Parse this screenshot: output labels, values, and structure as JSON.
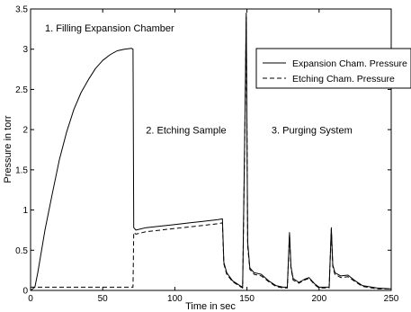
{
  "chart_data": {
    "type": "line",
    "xlabel": "Time in sec",
    "ylabel": "Pressure in torr",
    "xlim": [
      0,
      250
    ],
    "ylim": [
      0,
      3.5
    ],
    "xticks": [
      0,
      50,
      100,
      150,
      200,
      250
    ],
    "xtick_labels": [
      "0",
      "50",
      "100",
      "150",
      "200",
      "250"
    ],
    "yticks": [
      0,
      0.5,
      1,
      1.5,
      2,
      2.5,
      3,
      3.5
    ],
    "ytick_labels": [
      "0",
      "0.5",
      "1",
      "1.5",
      "2",
      "2.5",
      "3",
      "3.5"
    ],
    "grid": false,
    "legend_position": "right",
    "annotations": [
      {
        "text": "1. Filling Expansion Chamber",
        "x": 10,
        "y": 3.22
      },
      {
        "text": "2. Etching Sample",
        "x": 80,
        "y": 1.95
      },
      {
        "text": "3. Purging System",
        "x": 167,
        "y": 1.95
      }
    ],
    "series": [
      {
        "name": "Expansion Cham. Pressure",
        "style": "solid",
        "color": "#000000",
        "x": [
          0,
          3,
          5,
          10,
          15,
          20,
          25,
          30,
          35,
          40,
          45,
          50,
          55,
          60,
          65,
          70,
          71,
          71.5,
          73,
          80,
          90,
          100,
          110,
          120,
          130,
          133,
          134,
          136,
          140,
          145,
          147,
          148.5,
          149.5,
          150.5,
          152,
          155,
          160,
          165,
          170,
          175,
          178,
          179.5,
          180.5,
          182,
          186,
          190,
          193,
          197,
          200,
          205,
          207,
          208.5,
          209.5,
          211,
          215,
          220,
          225,
          230,
          240,
          250
        ],
        "y": [
          0,
          0.04,
          0.22,
          0.75,
          1.2,
          1.63,
          1.97,
          2.25,
          2.46,
          2.62,
          2.76,
          2.86,
          2.93,
          2.98,
          3.0,
          3.01,
          3.0,
          0.78,
          0.75,
          0.78,
          0.8,
          0.82,
          0.84,
          0.86,
          0.88,
          0.89,
          0.35,
          0.22,
          0.12,
          0.06,
          0.04,
          2.0,
          3.45,
          0.6,
          0.28,
          0.22,
          0.2,
          0.12,
          0.06,
          0.04,
          0.04,
          0.72,
          0.3,
          0.15,
          0.1,
          0.14,
          0.16,
          0.08,
          0.04,
          0.04,
          0.04,
          0.78,
          0.32,
          0.22,
          0.18,
          0.19,
          0.12,
          0.06,
          0.03,
          0.02
        ]
      },
      {
        "name": "Etching Cham. Pressure",
        "style": "dashed",
        "color": "#000000",
        "x": [
          0,
          70,
          71,
          71.5,
          73,
          80,
          90,
          100,
          110,
          120,
          130,
          133,
          134,
          136,
          140,
          145,
          147,
          148.5,
          149.5,
          150.5,
          152,
          155,
          160,
          165,
          170,
          175,
          178,
          179.5,
          180.5,
          182,
          186,
          190,
          193,
          197,
          200,
          205,
          207,
          208.5,
          209.5,
          211,
          215,
          220,
          225,
          230,
          240,
          250
        ],
        "y": [
          0.04,
          0.04,
          0.04,
          0.72,
          0.7,
          0.73,
          0.75,
          0.77,
          0.79,
          0.81,
          0.83,
          0.84,
          0.33,
          0.2,
          0.11,
          0.05,
          0.03,
          1.9,
          3.4,
          0.55,
          0.26,
          0.2,
          0.18,
          0.11,
          0.05,
          0.03,
          0.03,
          0.7,
          0.28,
          0.13,
          0.09,
          0.13,
          0.15,
          0.07,
          0.03,
          0.03,
          0.03,
          0.76,
          0.3,
          0.2,
          0.16,
          0.17,
          0.11,
          0.05,
          0.02,
          0.02
        ]
      }
    ]
  }
}
